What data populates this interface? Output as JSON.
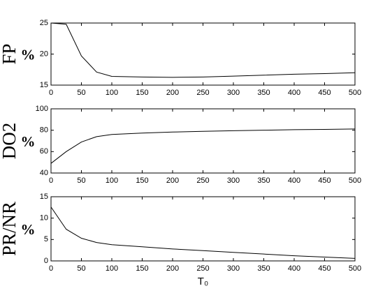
{
  "chart_data": [
    {
      "type": "line",
      "ylabel": "FP",
      "yunit": "%",
      "color": "#000000",
      "x": [
        0,
        25,
        50,
        75,
        100,
        150,
        200,
        250,
        300,
        350,
        400,
        450,
        500
      ],
      "values": [
        25,
        24.8,
        19.7,
        17.1,
        16.4,
        16.3,
        16.25,
        16.3,
        16.45,
        16.6,
        16.75,
        16.85,
        17.0
      ],
      "xlim": [
        0,
        500
      ],
      "xticks": [
        0,
        50,
        100,
        150,
        200,
        250,
        300,
        350,
        400,
        450,
        500
      ],
      "ylim": [
        15,
        25
      ],
      "yticks": [
        15,
        20,
        25
      ]
    },
    {
      "type": "line",
      "ylabel": "DO2",
      "yunit": "%",
      "color": "#000000",
      "x": [
        0,
        25,
        50,
        75,
        100,
        150,
        200,
        250,
        300,
        350,
        400,
        450,
        500
      ],
      "values": [
        49,
        60,
        69,
        74,
        76,
        77.3,
        78.3,
        79,
        79.5,
        80,
        80.5,
        80.8,
        81.2
      ],
      "xlim": [
        0,
        500
      ],
      "xticks": [
        0,
        50,
        100,
        150,
        200,
        250,
        300,
        350,
        400,
        450,
        500
      ],
      "ylim": [
        40,
        100
      ],
      "yticks": [
        40,
        60,
        80,
        100
      ]
    },
    {
      "type": "line",
      "ylabel": "PR/NR",
      "yunit": "%",
      "xlabel": "T₀",
      "color": "#000000",
      "x": [
        0,
        25,
        50,
        75,
        100,
        150,
        200,
        250,
        300,
        350,
        400,
        450,
        500
      ],
      "values": [
        12.6,
        7.4,
        5.3,
        4.3,
        3.8,
        3.3,
        2.8,
        2.4,
        2.0,
        1.6,
        1.2,
        0.9,
        0.6
      ],
      "xlim": [
        0,
        500
      ],
      "xticks": [
        0,
        50,
        100,
        150,
        200,
        250,
        300,
        350,
        400,
        450,
        500
      ],
      "ylim": [
        0,
        15
      ],
      "yticks": [
        0,
        5,
        10,
        15
      ]
    }
  ]
}
